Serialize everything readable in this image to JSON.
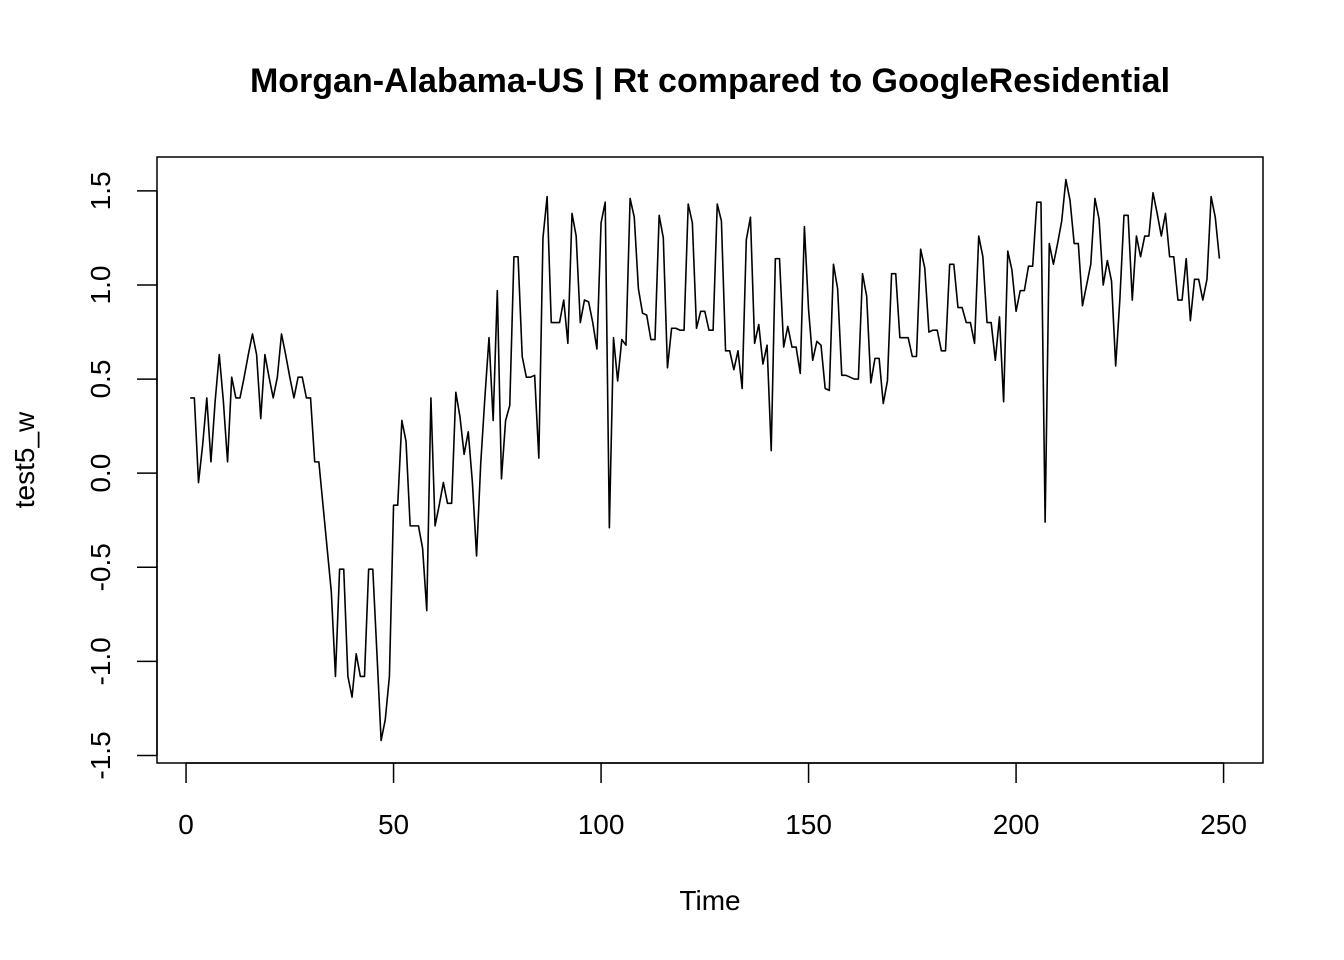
{
  "chart_data": {
    "type": "line",
    "title": "Morgan-Alabama-US | Rt compared to GoogleResidential",
    "xlabel": "Time",
    "ylabel": "test5_w",
    "xlim": [
      -7,
      259.5
    ],
    "ylim": [
      -1.54,
      1.68
    ],
    "xticks": [
      0,
      50,
      100,
      150,
      200,
      250
    ],
    "yticks": [
      -1.5,
      -1.0,
      -0.5,
      0.0,
      0.5,
      1.0,
      1.5
    ],
    "ytick_labels": [
      "-1.5",
      "-1.0",
      "-0.5",
      "0.0",
      "0.5",
      "1.0",
      "1.5"
    ],
    "grid": false,
    "line_color": "#000000",
    "series": [
      {
        "x_start": 1,
        "values": [
          0.4,
          0.4,
          -0.05,
          0.15,
          0.4,
          0.06,
          0.38,
          0.63,
          0.38,
          0.06,
          0.51,
          0.4,
          0.4,
          0.51,
          0.63,
          0.74,
          0.63,
          0.29,
          0.63,
          0.51,
          0.4,
          0.51,
          0.74,
          0.63,
          0.51,
          0.4,
          0.51,
          0.51,
          0.4,
          0.4,
          0.06,
          0.06,
          -0.17,
          -0.4,
          -0.63,
          -1.08,
          -0.51,
          -0.51,
          -1.08,
          -1.19,
          -0.96,
          -1.08,
          -1.08,
          -0.51,
          -0.51,
          -0.96,
          -1.42,
          -1.31,
          -1.08,
          -0.17,
          -0.17,
          0.28,
          0.17,
          -0.28,
          -0.28,
          -0.28,
          -0.4,
          -0.73,
          0.4,
          -0.28,
          -0.17,
          -0.05,
          -0.16,
          -0.16,
          0.43,
          0.3,
          0.1,
          0.22,
          -0.05,
          -0.44,
          0.05,
          0.4,
          0.72,
          0.28,
          0.97,
          -0.03,
          0.28,
          0.36,
          1.15,
          1.15,
          0.62,
          0.51,
          0.51,
          0.52,
          0.08,
          1.25,
          1.47,
          0.8,
          0.8,
          0.8,
          0.92,
          0.69,
          1.38,
          1.26,
          0.8,
          0.92,
          0.91,
          0.8,
          0.66,
          1.33,
          1.44,
          -0.29,
          0.72,
          0.49,
          0.71,
          0.68,
          1.46,
          1.36,
          0.98,
          0.85,
          0.84,
          0.71,
          0.71,
          1.37,
          1.25,
          0.56,
          0.77,
          0.77,
          0.76,
          0.76,
          1.43,
          1.33,
          0.77,
          0.86,
          0.86,
          0.76,
          0.76,
          1.43,
          1.34,
          0.65,
          0.65,
          0.55,
          0.65,
          0.45,
          1.24,
          1.36,
          0.69,
          0.79,
          0.58,
          0.68,
          0.12,
          1.14,
          1.14,
          0.67,
          0.78,
          0.67,
          0.67,
          0.53,
          1.31,
          0.87,
          0.6,
          0.7,
          0.68,
          0.45,
          0.44,
          1.11,
          0.98,
          0.52,
          0.52,
          0.51,
          0.5,
          0.5,
          1.06,
          0.94,
          0.48,
          0.61,
          0.61,
          0.37,
          0.49,
          1.06,
          1.06,
          0.72,
          0.72,
          0.72,
          0.62,
          0.62,
          1.19,
          1.09,
          0.75,
          0.76,
          0.76,
          0.65,
          0.65,
          1.11,
          1.11,
          0.88,
          0.88,
          0.8,
          0.8,
          0.69,
          1.26,
          1.15,
          0.8,
          0.8,
          0.6,
          0.83,
          0.38,
          1.18,
          1.08,
          0.86,
          0.97,
          0.97,
          1.1,
          1.1,
          1.44,
          1.44,
          -0.26,
          1.22,
          1.11,
          1.22,
          1.34,
          1.56,
          1.45,
          1.22,
          1.22,
          0.89,
          1.0,
          1.11,
          1.46,
          1.35,
          1.0,
          1.13,
          1.02,
          0.57,
          0.92,
          1.37,
          1.37,
          0.92,
          1.26,
          1.15,
          1.26,
          1.26,
          1.49,
          1.38,
          1.26,
          1.38,
          1.15,
          1.15,
          0.92,
          0.92,
          1.14,
          0.81,
          1.03,
          1.03,
          0.92,
          1.03,
          1.47,
          1.36,
          1.14
        ]
      }
    ]
  }
}
